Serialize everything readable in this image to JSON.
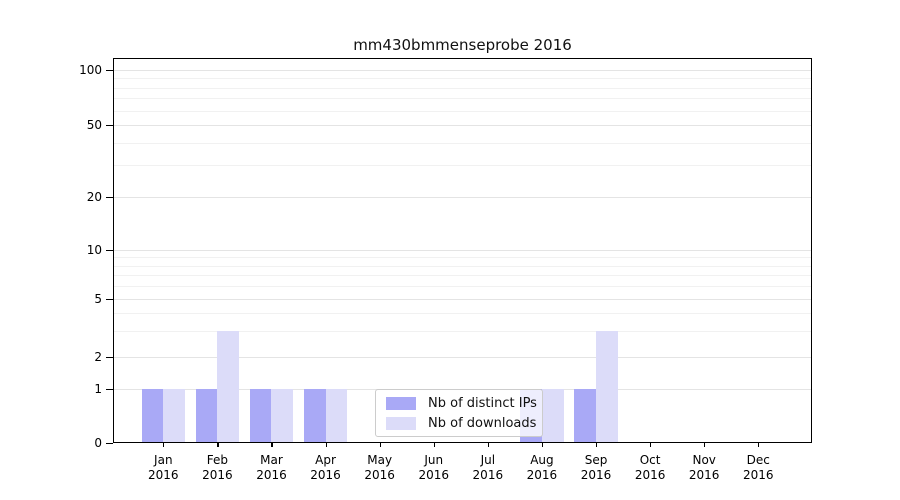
{
  "title": "mm430bmmenseprobe 2016",
  "chart_data": {
    "type": "bar",
    "categories": [
      "Jan",
      "Feb",
      "Mar",
      "Apr",
      "May",
      "Jun",
      "Jul",
      "Aug",
      "Sep",
      "Oct",
      "Nov",
      "Dec"
    ],
    "xtick_sublabel": "2016",
    "series": [
      {
        "name": "Nb of distinct IPs",
        "color": "#a9a9f6",
        "values": [
          1,
          1,
          1,
          1,
          0,
          0,
          0,
          1,
          1,
          0,
          0,
          0
        ]
      },
      {
        "name": "Nb of downloads",
        "color": "#dcdcf9",
        "values": [
          1,
          3,
          1,
          1,
          0,
          0,
          0,
          1,
          3,
          0,
          0,
          0
        ]
      }
    ],
    "yscale": "log-like",
    "yticks": [
      0,
      1,
      2,
      5,
      10,
      20,
      50,
      100
    ],
    "minor_gridlines": [
      3,
      4,
      6,
      7,
      8,
      9,
      30,
      40,
      60,
      70,
      80,
      90
    ],
    "ylim": [
      0,
      110
    ],
    "grid": true,
    "legend_position": "lower-center"
  },
  "colors": {
    "axis": "#000000",
    "grid_major": "#e4e4e4",
    "grid_minor": "#f1f1f1",
    "background": "#ffffff"
  }
}
